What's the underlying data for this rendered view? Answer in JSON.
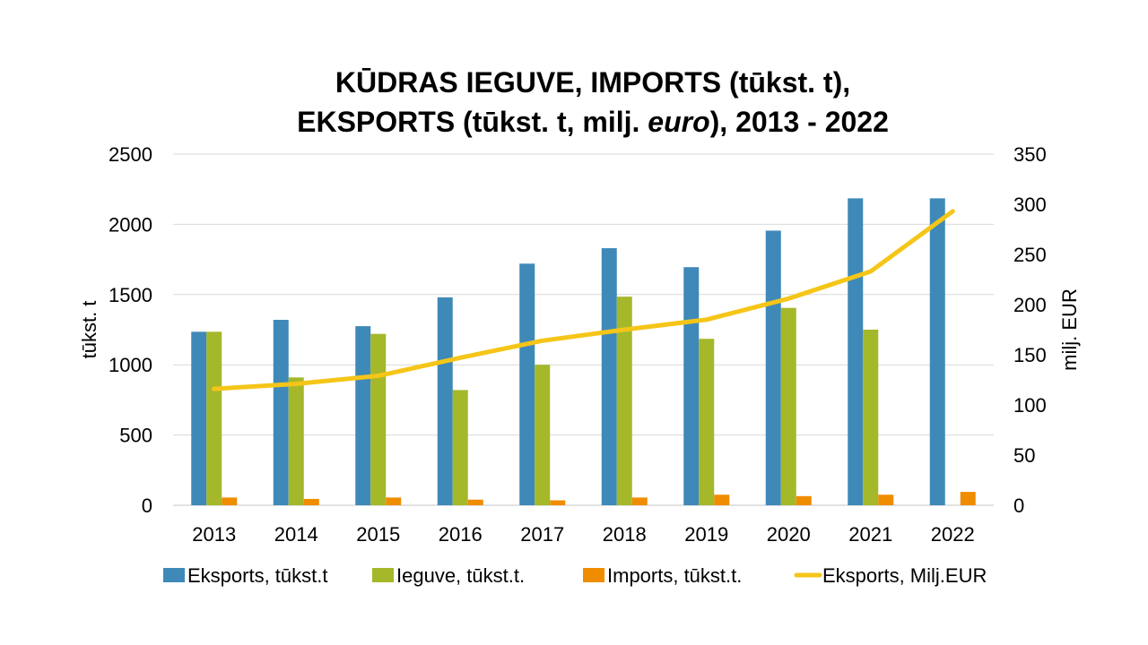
{
  "colors": {
    "eksports_t": "#3F89B8",
    "ieguve": "#A4B82A",
    "imports": "#F08C00",
    "eksports_eur": "#F5C518",
    "grid": "#D9D9D9"
  },
  "chart_data": {
    "type": "bar",
    "title": {
      "line1": "KŪDRAS IEGUVE, IMPORTS (tūkst. t),",
      "line2_a": "EKSPORTS (tūkst. t, milj. ",
      "line2_b": "euro",
      "line2_c": "), 2013 - 2022"
    },
    "categories": [
      "2013",
      "2014",
      "2015",
      "2016",
      "2017",
      "2018",
      "2019",
      "2020",
      "2021",
      "2022"
    ],
    "ylabel": "tūkst. t",
    "ylabel_right": "milj. EUR",
    "ylim": [
      0,
      2500
    ],
    "ylim_right": [
      0,
      350
    ],
    "yticks": [
      "0",
      "500",
      "1000",
      "1500",
      "2000",
      "2500"
    ],
    "yticks_right": [
      "0",
      "50",
      "100",
      "150",
      "200",
      "250",
      "300",
      "350"
    ],
    "grid": true,
    "legend_position": "bottom",
    "series": [
      {
        "name": "Eksports, tūkst.t",
        "type": "bar",
        "axis": "left",
        "values": [
          1235,
          1320,
          1275,
          1480,
          1720,
          1830,
          1695,
          1955,
          2185,
          2185
        ]
      },
      {
        "name": "Ieguve, tūkst.t.",
        "type": "bar",
        "axis": "left",
        "values": [
          1235,
          910,
          1220,
          820,
          1000,
          1485,
          1185,
          1405,
          1250,
          null
        ]
      },
      {
        "name": "Imports, tūkst.t.",
        "type": "bar",
        "axis": "left",
        "values": [
          55,
          45,
          55,
          40,
          35,
          55,
          75,
          65,
          75,
          95
        ]
      },
      {
        "name": "Eksports, Milj.EUR",
        "type": "line",
        "axis": "right",
        "values": [
          116,
          121,
          129,
          147,
          164,
          175,
          185,
          206,
          233,
          293
        ]
      }
    ]
  }
}
